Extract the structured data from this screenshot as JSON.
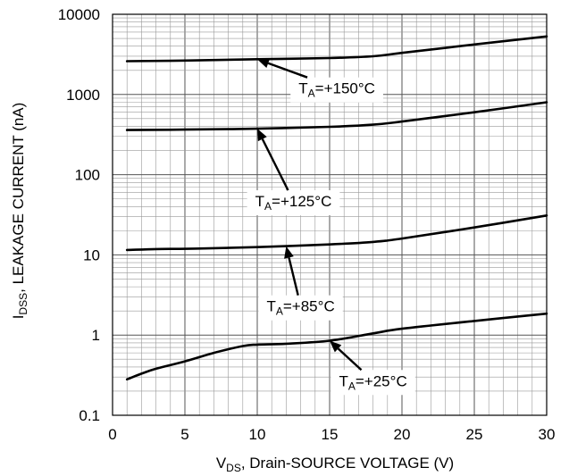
{
  "chart_data": {
    "type": "line",
    "title": "",
    "xlabel": {
      "main": "V",
      "sub": "DS",
      "rest": ", Drain-SOURCE VOLTAGE (V)"
    },
    "ylabel": {
      "main": "I",
      "sub": "DSS",
      "rest": ", LEAKAGE CURRENT (nA)"
    },
    "xlim": [
      0,
      30
    ],
    "ylim": [
      0.1,
      10000
    ],
    "yscale": "log",
    "grid": true,
    "x_ticks": [
      "0",
      "5",
      "10",
      "15",
      "20",
      "25",
      "30"
    ],
    "y_ticks": [
      "0.1",
      "1",
      "10",
      "100",
      "1000",
      "10000"
    ],
    "series": [
      {
        "name": "TA=+150°C",
        "label_main": "T",
        "label_sub": "A",
        "label_rest": "=+150°C",
        "x": [
          1,
          5,
          10,
          15,
          18,
          20,
          25,
          30
        ],
        "y": [
          2600,
          2650,
          2750,
          2850,
          3000,
          3300,
          4200,
          5300
        ]
      },
      {
        "name": "TA=+125°C",
        "label_main": "T",
        "label_sub": "A",
        "label_rest": "=+125°C",
        "x": [
          1,
          5,
          10,
          15,
          18,
          20,
          25,
          30
        ],
        "y": [
          360,
          365,
          375,
          395,
          420,
          460,
          600,
          800
        ]
      },
      {
        "name": "TA=+85°C",
        "label_main": "T",
        "label_sub": "A",
        "label_rest": "=+85°C",
        "x": [
          1,
          3,
          6,
          10,
          15,
          18,
          20,
          25,
          30
        ],
        "y": [
          11.5,
          11.8,
          12.0,
          12.5,
          13.5,
          14.5,
          16,
          22,
          31
        ]
      },
      {
        "name": "TA=+25°C",
        "label_main": "T",
        "label_sub": "A",
        "label_rest": "=+25°C",
        "x": [
          1,
          2,
          3,
          5,
          7,
          9,
          10,
          12,
          15,
          18,
          20,
          25,
          30
        ],
        "y": [
          0.28,
          0.33,
          0.38,
          0.47,
          0.6,
          0.73,
          0.76,
          0.78,
          0.85,
          1.05,
          1.2,
          1.5,
          1.85
        ]
      }
    ],
    "annotations": [
      {
        "series": "TA=+150°C",
        "text_x": 15.5,
        "text_y": 1200,
        "point_x": 10,
        "point_y": 2750
      },
      {
        "series": "TA=+125°C",
        "text_x": 12.5,
        "text_y": 47,
        "point_x": 10,
        "point_y": 375
      },
      {
        "series": "TA=+85°C",
        "text_x": 13,
        "text_y": 2.3,
        "point_x": 12,
        "point_y": 12.8
      },
      {
        "series": "TA=+25°C",
        "text_x": 18,
        "text_y": 0.27,
        "point_x": 15,
        "point_y": 0.85
      }
    ]
  }
}
